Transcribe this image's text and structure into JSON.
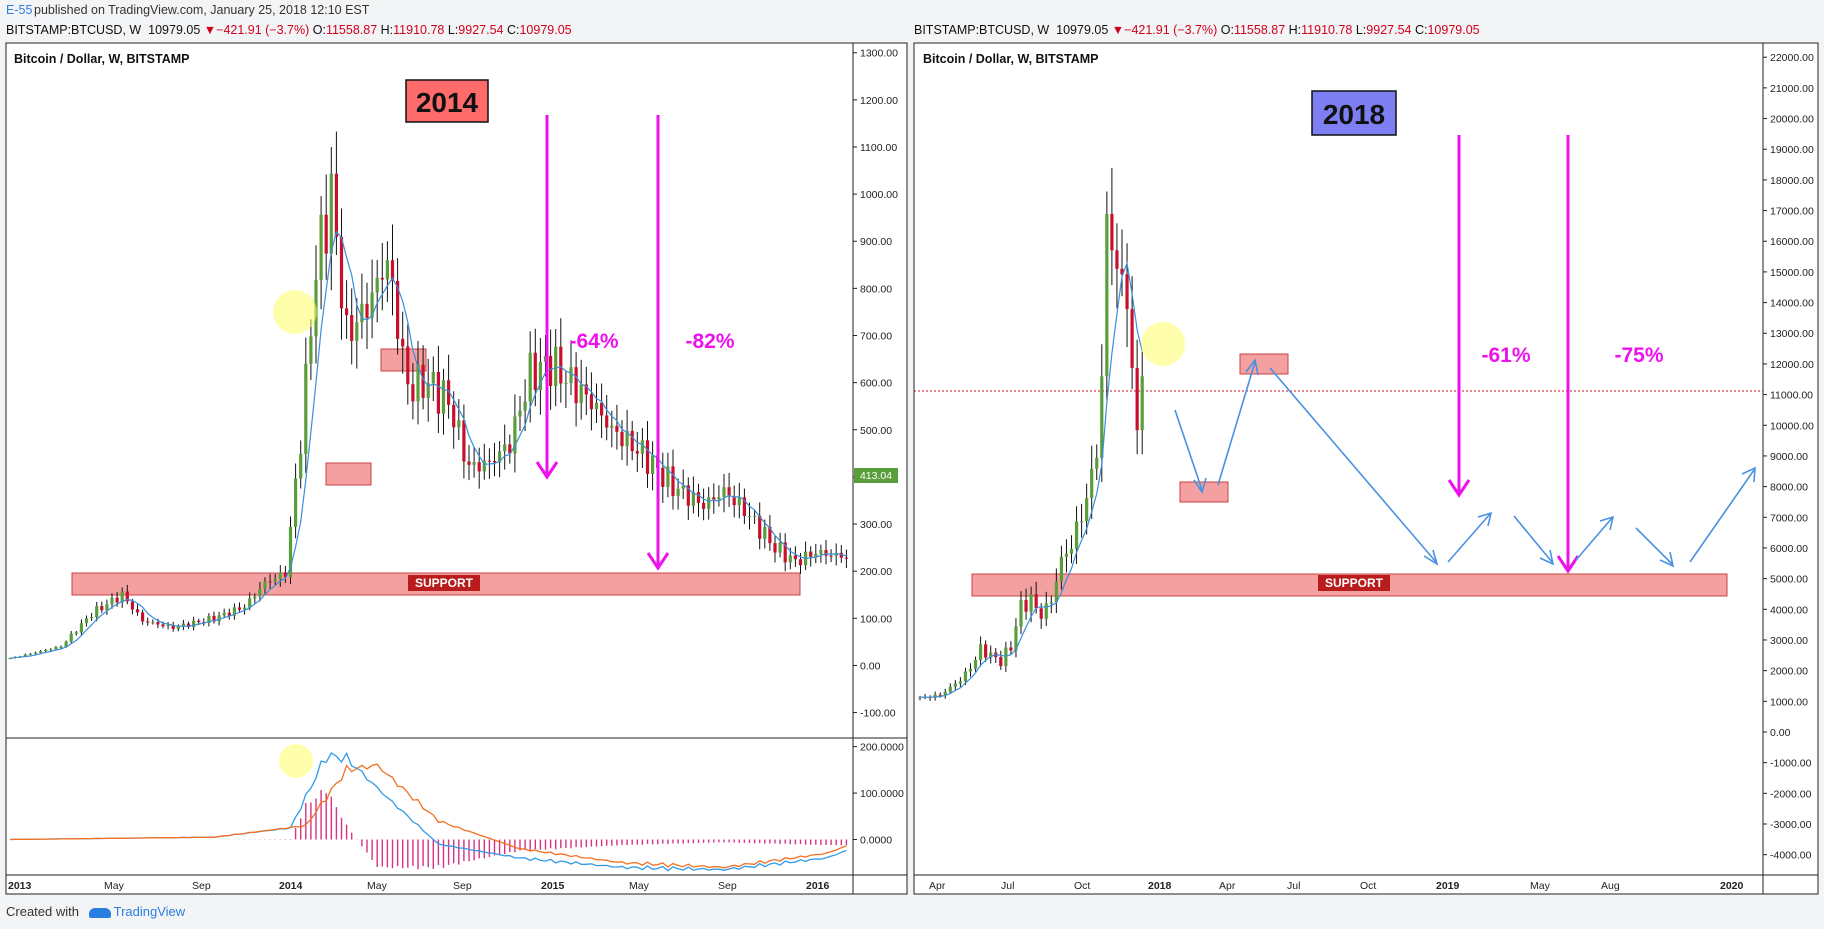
{
  "header": {
    "author": "E-55",
    "published": "published on TradingView.com, January 25, 2018 12:10 EST"
  },
  "ticker": {
    "symbol": "BITSTAMP:BTCUSD, W",
    "last": "10979.05",
    "arrow": "▼",
    "change": "−421.91 (−3.7%)",
    "o_label": "O:",
    "o": "11558.87",
    "h_label": "H:",
    "h": "11910.78",
    "l_label": "L:",
    "l": "9927.54",
    "c_label": "C:",
    "c": "10979.05"
  },
  "footer": {
    "created_with": "Created with",
    "brand": "TradingView"
  },
  "colors": {
    "up": "#5a9e3c",
    "down": "#c8102e",
    "ma": "#3a8edb",
    "arrow_pink": "#ee11ee",
    "support_fill": "#f08a8a",
    "blue_path": "#4a90e2"
  },
  "chart_data": [
    {
      "type": "candlestick",
      "title": "Bitcoin / Dollar, W, BITSTAMP",
      "banner": "2014",
      "x_ticks": [
        "2013",
        "May",
        "Sep",
        "2014",
        "May",
        "Sep",
        "2015",
        "May",
        "Sep",
        "2016"
      ],
      "y_ticks": [
        "1300.00",
        "1200.00",
        "1100.00",
        "1000.00",
        "900.00",
        "800.00",
        "700.00",
        "600.00",
        "500.00",
        "400.00",
        "300.00",
        "200.00",
        "100.00",
        "0.00",
        "-100.00"
      ],
      "ylim": [
        -120,
        1310
      ],
      "last_price_label": "413.04",
      "annotations": [
        "-64%",
        "-82%"
      ],
      "support_label": "SUPPORT",
      "support_range": [
        165,
        210
      ],
      "indicator": {
        "name": "MACD",
        "y_ticks": [
          "200.0000",
          "100.0000",
          "0.0000"
        ],
        "ylim": [
          -70,
          210
        ]
      }
    },
    {
      "type": "candlestick",
      "title": "Bitcoin / Dollar, W, BITSTAMP",
      "banner": "2018",
      "x_ticks": [
        "Apr",
        "Jul",
        "Oct",
        "2018",
        "Apr",
        "Jul",
        "Oct",
        "2019",
        "May",
        "Aug",
        "2020"
      ],
      "y_ticks": [
        "22000.00",
        "21000.00",
        "20000.00",
        "19000.00",
        "18000.00",
        "17000.00",
        "16000.00",
        "15000.00",
        "14000.00",
        "13000.00",
        "12000.00",
        "11000.00",
        "10000.00",
        "9000.00",
        "8000.00",
        "7000.00",
        "6000.00",
        "5000.00",
        "4000.00",
        "3000.00",
        "2000.00",
        "1000.00",
        "0.00",
        "-1000.00",
        "-2000.00",
        "-3000.00",
        "-4000.00"
      ],
      "ylim": [
        -4500,
        22300
      ],
      "price_line": 10979.05,
      "annotations": [
        "-61%",
        "-75%"
      ],
      "support_label": "SUPPORT",
      "support_range": [
        4200,
        5000
      ]
    }
  ]
}
